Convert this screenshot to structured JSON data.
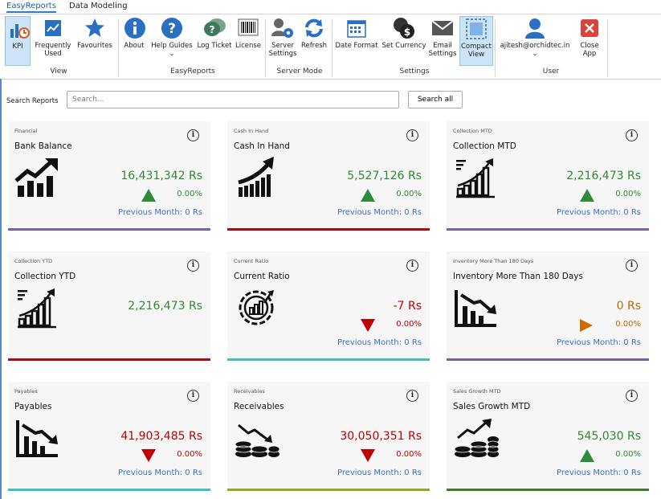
{
  "tabs": [
    {
      "label": "EasyReports",
      "active": true
    },
    {
      "label": "Data Modeling",
      "active": false
    }
  ],
  "ribbon": {
    "buttons": [
      {
        "id": "kpi",
        "label": "KPI",
        "icon": "kpi-chart-icon"
      },
      {
        "id": "frequently-used",
        "label": "Frequently Used",
        "icon": "chart-icon"
      },
      {
        "id": "favourites",
        "label": "Favourites",
        "icon": "star-icon"
      },
      {
        "id": "about",
        "label": "About",
        "icon": "info-icon"
      },
      {
        "id": "help-guides",
        "label": "Help Guides",
        "icon": "question-icon"
      },
      {
        "id": "log-ticket",
        "label": "Log Ticket",
        "icon": "chat-icon"
      },
      {
        "id": "license",
        "label": "License",
        "icon": "barcode-icon"
      },
      {
        "id": "server-settings",
        "label": "Server Settings",
        "icon": "server-gear-icon"
      },
      {
        "id": "refresh",
        "label": "Refresh",
        "icon": "refresh-icon"
      },
      {
        "id": "date-format",
        "label": "Date Format",
        "icon": "calendar-icon"
      },
      {
        "id": "set-currency",
        "label": "Set Currency",
        "icon": "currency-icon"
      },
      {
        "id": "email-settings",
        "label": "Email Settings",
        "icon": "email-icon"
      },
      {
        "id": "compact-view",
        "label": "Compact View",
        "icon": "compact-view-icon"
      },
      {
        "id": "user",
        "label": "ajitesh@orchidtec.in",
        "icon": "user-icon"
      },
      {
        "id": "close-app",
        "label": "Close App",
        "icon": "close-icon"
      }
    ],
    "groups": [
      "View",
      "EasyReports",
      "Server Mode",
      "Settings",
      "User"
    ]
  },
  "search": {
    "label": "Search Reports",
    "placeholder": "Search...",
    "button": "Search all"
  },
  "cards": [
    {
      "category": "Financial",
      "title": "Bank Balance",
      "value": "16,431,342 Rs",
      "pct": "0.00%",
      "trend": "up",
      "prev": "Previous Month: 0 Rs",
      "color": "green",
      "bar": "#7b61a8",
      "icon": "trend-up-icon"
    },
    {
      "category": "Cash In Hand",
      "title": "Cash In Hand",
      "value": "5,527,126 Rs",
      "pct": "0.00%",
      "trend": "up",
      "prev": "Previous Month: 0 Rs",
      "color": "green",
      "bar": "#a01010",
      "icon": "cash-growth-icon"
    },
    {
      "category": "Collection MTD",
      "title": "Collection MTD",
      "value": "2,216,473 Rs",
      "pct": "0.00%",
      "trend": "up",
      "prev": "Previous Month: 0 Rs",
      "color": "green",
      "bar": "#7b61a8",
      "icon": "collection-chart-icon"
    },
    {
      "category": "Collection YTD",
      "title": "Collection YTD",
      "value": "2,216,473 Rs",
      "pct": "",
      "trend": "",
      "prev": "",
      "color": "green",
      "bar": "#a01010",
      "icon": "collection-chart-icon"
    },
    {
      "category": "Current Ratio",
      "title": "Current Ratio",
      "value": "-7 Rs",
      "pct": "0.00%",
      "trend": "down",
      "prev": "Previous Month: 0 Rs",
      "color": "red",
      "bar": "#3fbfbf",
      "icon": "gear-chart-icon"
    },
    {
      "category": "Inventory More Than 180 Days",
      "title": "Inventory More Than 180 Days",
      "value": "0 Rs",
      "pct": "0.00%",
      "trend": "right",
      "prev": "Previous Month: 0 Rs",
      "color": "orange",
      "bar": "#7b61a8",
      "icon": "trend-down-icon"
    },
    {
      "category": "Payables",
      "title": "Payables",
      "value": "41,903,485 Rs",
      "pct": "0.00%",
      "trend": "down",
      "prev": "Previous Month: 0 Rs",
      "color": "red",
      "bar": "#3fbfbf",
      "icon": "trend-down-icon"
    },
    {
      "category": "Receivables",
      "title": "Receivables",
      "value": "30,050,351 Rs",
      "pct": "0.00%",
      "trend": "down",
      "prev": "Previous Month: 0 Rs",
      "color": "red",
      "bar": "#8faa22",
      "icon": "coins-down-icon"
    },
    {
      "category": "Sales Growth MTD",
      "title": "Sales Growth MTD",
      "value": "545,030 Rs",
      "pct": "0.00%",
      "trend": "up",
      "prev": "Previous Month: 0 Rs",
      "color": "green",
      "bar": "#3f7a2e",
      "icon": "coins-up-icon"
    }
  ]
}
